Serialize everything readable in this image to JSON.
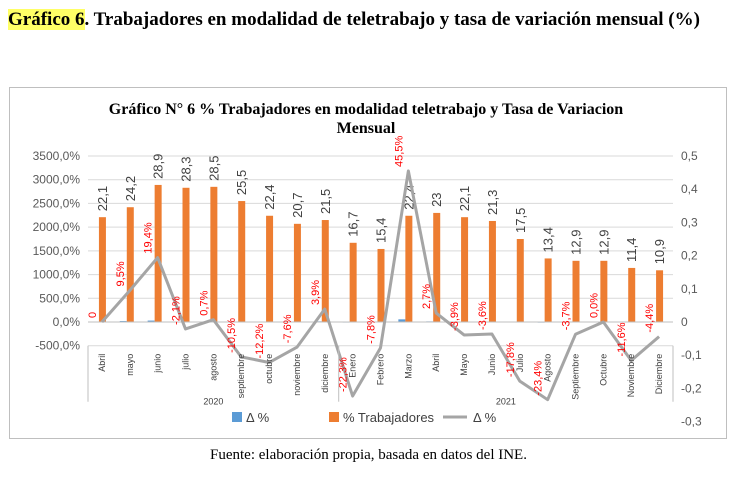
{
  "heading": {
    "prefix": "Gráfico 6",
    "text": ". Trabajadores en modalidad de teletrabajo y tasa de variación mensual (%)"
  },
  "source": "Fuente: elaboración propia, basada en datos del INE.",
  "chart_data": {
    "type": "bar",
    "title": "Gráfico N° 6 % Trabajadores en modalidad teletrabajo y Tasa de Variacion Mensual",
    "groups": [
      {
        "label": "2020",
        "count": 9
      },
      {
        "label": "2021",
        "count": 12
      }
    ],
    "categories": [
      "Abril",
      "mayo",
      "junio",
      "julio",
      "agosto",
      "septiembre",
      "octubre",
      "noviembre",
      "diciembre",
      "Enero",
      "Febrero",
      "Marzo",
      "Abril",
      "Mayo",
      "Junio",
      "Julio",
      "Agosto",
      "Septiembre",
      "Octubre",
      "Noviembre",
      "Diciembre"
    ],
    "series": [
      {
        "name": "Δ %",
        "type": "bar",
        "axis": "left",
        "color": "#5b9bd5",
        "values": [
          0,
          9.5,
          19.4,
          -2.1,
          0.7,
          -10.5,
          -12.2,
          -7.6,
          3.9,
          -22.3,
          -7.8,
          45.5,
          2.7,
          -3.9,
          -3.6,
          -17.8,
          -23.4,
          -3.7,
          0.0,
          -11.6,
          -4.4
        ]
      },
      {
        "name": "% Trabajadores",
        "type": "bar",
        "axis": "left",
        "color": "#ed7d31",
        "values": [
          2210,
          2420,
          2890,
          2830,
          2850,
          2550,
          2240,
          2070,
          2150,
          1670,
          1540,
          2240,
          2300,
          2210,
          2130,
          1750,
          1340,
          1290,
          1290,
          1140,
          1090
        ],
        "labels": [
          "22,1",
          "24,2",
          "28,9",
          "28,3",
          "28,5",
          "25,5",
          "22,4",
          "20,7",
          "21,5",
          "16,7",
          "15,4",
          "22,4",
          "23",
          "22,1",
          "21,3",
          "17,5",
          "13,4",
          "12,9",
          "12,9",
          "11,4",
          "10,9"
        ]
      },
      {
        "name": "Δ %",
        "type": "line",
        "axis": "right",
        "color": "#a5a5a5",
        "values": [
          0,
          0.095,
          0.194,
          -0.021,
          0.007,
          -0.105,
          -0.122,
          -0.076,
          0.039,
          -0.223,
          -0.078,
          0.455,
          0.027,
          -0.039,
          -0.036,
          -0.178,
          -0.234,
          -0.037,
          0.0,
          -0.116,
          -0.044
        ],
        "labels": [
          "0",
          "9,5%",
          "19,4%",
          "-2,1%",
          "0,7%",
          "-10,5%",
          "-12,2%",
          "-7,6%",
          "3,9%",
          "-22,3%",
          "-7,8%",
          "45,5%",
          "2,7%",
          "-3,9%",
          "-3,6%",
          "-17,8%",
          "-23,4%",
          "-3,7%",
          "0,0%",
          "-11,6%",
          "-4,4%"
        ]
      }
    ],
    "y_left": {
      "min": -500,
      "max": 3500,
      "step": 500,
      "tick_labels": [
        "-500,0%",
        "0,0%",
        "500,0%",
        "1000,0%",
        "1500,0%",
        "2000,0%",
        "2500,0%",
        "3000,0%",
        "3500,0%"
      ]
    },
    "y_right": {
      "min": -0.3,
      "max": 0.5,
      "step": 0.1,
      "tick_labels": [
        "-0,3",
        "-0,2",
        "-0,1",
        "0",
        "0,1",
        "0,2",
        "0,3",
        "0,4",
        "0,5"
      ]
    },
    "legend": {
      "position": "bottom",
      "entries": [
        "Δ %",
        "% Trabajadores",
        "Δ %"
      ]
    },
    "colors": {
      "label_red": "#ff0000",
      "grid": "#d9d9d9",
      "axis_text": "#595959"
    }
  }
}
